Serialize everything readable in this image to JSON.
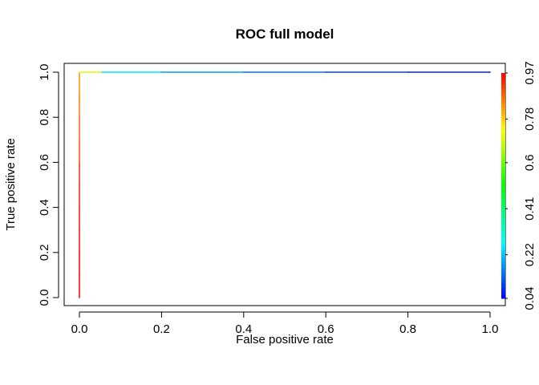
{
  "chart_data": {
    "type": "line",
    "title": "ROC full model",
    "xlabel": "False positive rate",
    "ylabel": "True positive rate",
    "xlim": [
      0,
      1
    ],
    "ylim": [
      0,
      1
    ],
    "x_ticks": [
      "0.0",
      "0.2",
      "0.4",
      "0.6",
      "0.8",
      "1.0"
    ],
    "y_ticks": [
      "0.0",
      "0.2",
      "0.4",
      "0.6",
      "0.8",
      "1.0"
    ],
    "grid": false,
    "legend": "none",
    "series": [
      {
        "x": [
          0.0,
          0.0,
          0.0,
          0.0,
          0.0,
          0.0,
          0.0,
          0.0,
          0.0,
          0.0,
          0.0,
          0.055,
          0.2,
          0.4,
          0.6,
          0.8,
          1.0
        ],
        "y": [
          0.0,
          0.1,
          0.2,
          0.3,
          0.4,
          0.5,
          0.6,
          0.7,
          0.8,
          0.9,
          1.0,
          1.0,
          1.0,
          1.0,
          1.0,
          1.0,
          1.0
        ],
        "cutoff": [
          0.97,
          0.97,
          0.96,
          0.95,
          0.94,
          0.93,
          0.9,
          0.88,
          0.86,
          0.84,
          0.7,
          0.25,
          0.18,
          0.14,
          0.1,
          0.07,
          0.04
        ]
      }
    ],
    "colorbar": {
      "ticks": [
        "0.04",
        "0.22",
        "0.41",
        "0.6",
        "0.78",
        "0.97"
      ],
      "values": [
        0.04,
        0.22,
        0.41,
        0.6,
        0.78,
        0.97
      ],
      "range": [
        0.04,
        0.97
      ],
      "colormap": "rainbow (blue to red)"
    }
  }
}
